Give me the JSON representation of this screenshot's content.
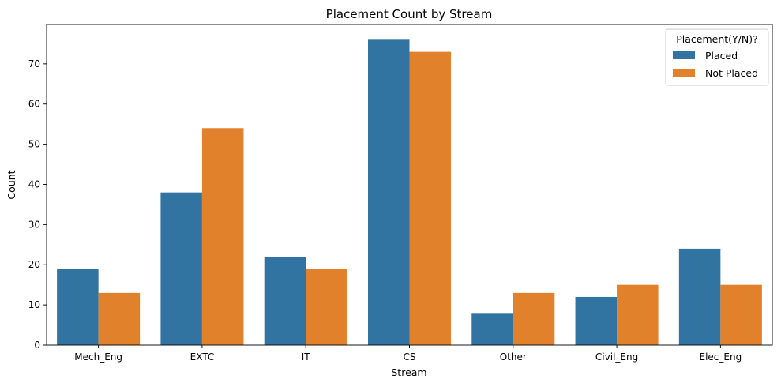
{
  "chart_data": {
    "type": "bar",
    "title": "Placement Count by Stream",
    "xlabel": "Stream",
    "ylabel": "Count",
    "categories": [
      "Mech_Eng",
      "EXTC",
      "IT",
      "CS",
      "Other",
      "Civil_Eng",
      "Elec_Eng"
    ],
    "series": [
      {
        "name": "Placed",
        "color": "#3274a1",
        "values": [
          19,
          38,
          22,
          76,
          8,
          12,
          24
        ]
      },
      {
        "name": "Not Placed",
        "color": "#e1812c",
        "values": [
          13,
          54,
          19,
          73,
          13,
          15,
          15
        ]
      }
    ],
    "ylim": [
      0,
      79.8
    ],
    "yticks": [
      0,
      10,
      20,
      30,
      40,
      50,
      60,
      70
    ],
    "legend": {
      "title": "Placement(Y/N)?",
      "position": "top-right"
    },
    "grid": false
  }
}
